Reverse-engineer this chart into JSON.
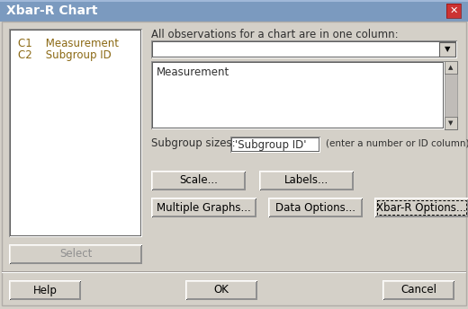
{
  "title": "Xbar-R Chart",
  "bg_color": "#d4d0c8",
  "title_bar_color": "#7b9abf",
  "close_btn_color": "#c0392b",
  "col1": "C1    Measurement",
  "col2": "C2    Subgroup ID",
  "col_color": "#8b6914",
  "dropdown_label": "All observations for a chart are in one column:",
  "listbox_item": "Measurement",
  "subgroup_label": "Subgroup sizes:",
  "subgroup_value": "'Subgroup ID'",
  "subgroup_hint": "(enter a number or ID column)",
  "btn_scale": "Scale...",
  "btn_labels": "Labels...",
  "btn_multigraph": "Multiple Graphs...",
  "btn_dataoptions": "Data Options...",
  "btn_xbar": "Xbar-R Options...",
  "btn_help": "Help",
  "btn_ok": "OK",
  "btn_cancel": "Cancel",
  "btn_select": "Select",
  "font_size": 8.5,
  "small_font": 8,
  "text_color": "#303030",
  "white": "#ffffff",
  "dark": "#808080",
  "darkest": "#404040",
  "panel_bg": "#e8e4e0"
}
